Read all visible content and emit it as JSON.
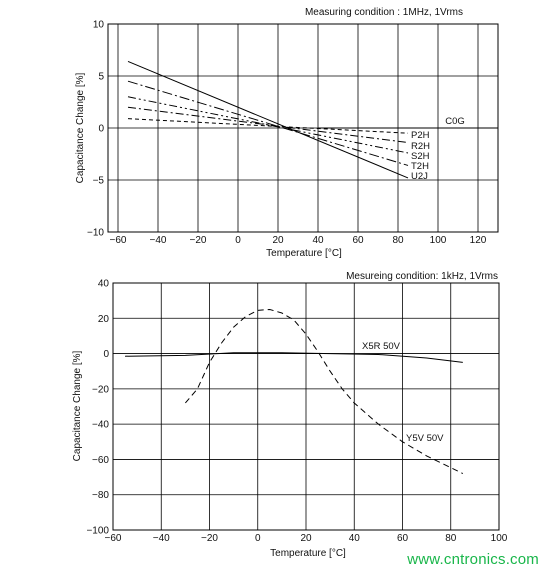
{
  "chart_data": [
    {
      "type": "line",
      "title": "Measuring condition : 1MHz, 1Vrms",
      "xlabel": "Temperature [°C]",
      "ylabel": "Capacitance Change [%]",
      "xlim": [
        -65,
        130
      ],
      "ylim": [
        -10,
        10
      ],
      "xticks": [
        -60,
        -40,
        -20,
        0,
        20,
        40,
        60,
        80,
        100,
        120
      ],
      "yticks": [
        -10,
        -5,
        0,
        5,
        10
      ],
      "grid": true,
      "group_label": "C0G",
      "series": [
        {
          "name": "P2H",
          "dash": "4,3",
          "x": [
            -55,
            85
          ],
          "y": [
            0.9,
            -0.5
          ]
        },
        {
          "name": "R2H",
          "dash": "8,3,2,3",
          "x": [
            -55,
            85
          ],
          "y": [
            2.0,
            -1.4
          ]
        },
        {
          "name": "S2H",
          "dash": "8,3,2,3,2,3",
          "x": [
            -55,
            85
          ],
          "y": [
            3.0,
            -2.4
          ]
        },
        {
          "name": "T2H",
          "dash": "10,3,2,3",
          "x": [
            -55,
            85
          ],
          "y": [
            4.5,
            -3.6
          ]
        },
        {
          "name": "U2J",
          "dash": "",
          "x": [
            -55,
            85
          ],
          "y": [
            6.4,
            -4.8
          ]
        }
      ]
    },
    {
      "type": "line",
      "title": "Mesureing condition: 1kHz, 1Vrms",
      "xlabel": "Temperature [°C]",
      "ylabel": "Capacitance Change [%]",
      "xlim": [
        -60,
        100
      ],
      "ylim": [
        -100,
        40
      ],
      "xticks": [
        -60,
        -40,
        -20,
        0,
        20,
        40,
        60,
        80,
        100
      ],
      "yticks": [
        -100,
        -80,
        -60,
        -40,
        -20,
        0,
        20,
        40
      ],
      "grid": true,
      "series": [
        {
          "name": "X5R 50V",
          "dash": "",
          "x": [
            -55,
            -30,
            -10,
            10,
            30,
            50,
            70,
            85
          ],
          "y": [
            -1.5,
            -1.0,
            0.5,
            0.5,
            0.0,
            -0.5,
            -2.5,
            -5.0
          ]
        },
        {
          "name": "Y5V 50V",
          "dash": "6,4",
          "x": [
            -30,
            -25,
            -20,
            -15,
            -10,
            -5,
            0,
            5,
            10,
            15,
            20,
            25,
            30,
            35,
            40,
            50,
            60,
            70,
            85
          ],
          "y": [
            -28,
            -20,
            -5,
            6,
            15,
            21,
            24.5,
            25,
            23,
            19,
            11,
            1,
            -10,
            -20,
            -28,
            -40,
            -50,
            -58,
            -68
          ]
        }
      ]
    }
  ],
  "watermark": "www.cntronics.com"
}
